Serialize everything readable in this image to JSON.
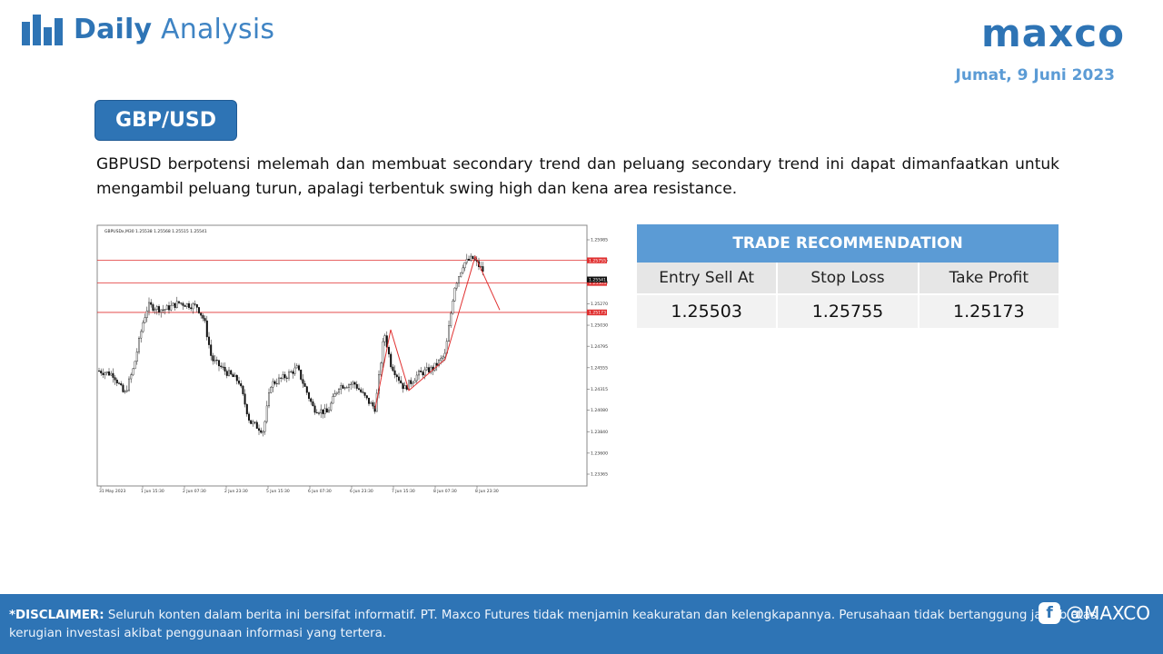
{
  "header": {
    "title_bold": "Daily",
    "title_light": "Analysis",
    "logo": "maxco",
    "date": "Jumat, 9 Juni 2023"
  },
  "pair": "GBP/USD",
  "description": "GBPUSD berpotensi melemah dan membuat secondary trend dan peluang secondary trend ini dapat dimanfaatkan untuk mengambil peluang turun, apalagi terbentuk swing high dan kena area resistance.",
  "chart": {
    "info_text": "GBPUSDx,M30  1.25538 1.25568 1.25515 1.25541",
    "y_ticks": [
      "1.25985",
      "1.25755",
      "1.25510",
      "1.25270",
      "1.25030",
      "1.24795",
      "1.24555",
      "1.24315",
      "1.24080",
      "1.23840",
      "1.23600",
      "1.23365"
    ],
    "x_ticks": [
      "31 May 2023",
      "1 Jun 15:30",
      "2 Jun 07:30",
      "2 Jun 23:30",
      "5 Jun 15:30",
      "6 Jun 07:30",
      "6 Jun 23:30",
      "7 Jun 15:30",
      "8 Jun 07:30",
      "8 Jun 23:30"
    ],
    "levels": {
      "resistance": "1.25755",
      "current": "1.25541",
      "entry": "1.25503",
      "target": "1.25173"
    },
    "colors": {
      "up": "#111111",
      "line": "#e03030",
      "label_bg": "#e03030"
    }
  },
  "trade": {
    "heading": "TRADE RECOMMENDATION",
    "columns": [
      "Entry Sell At",
      "Stop Loss",
      "Take Profit"
    ],
    "values": [
      "1.25503",
      "1.25755",
      "1.25173"
    ]
  },
  "footer": {
    "disclaimer_label": "*DISCLAIMER:",
    "disclaimer_text": " Seluruh konten dalam berita ini bersifat informatif. PT. Maxco Futures tidak menjamin keakuratan dan kelengkapannya. Perusahaan tidak bertanggung jawab atas kerugian investasi akibat penggunaan informasi yang tertera.",
    "social_handle": "@MAXCO",
    "icon": "facebook-icon"
  },
  "colors": {
    "brand": "#2e74b5",
    "accent": "#5b9bd5"
  }
}
